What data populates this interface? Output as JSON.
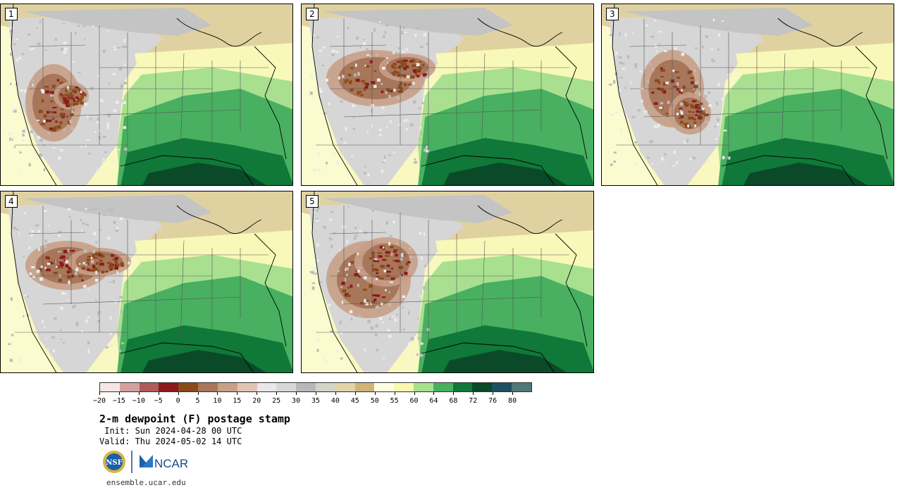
{
  "panels": [
    {
      "number": "1",
      "scenario": "west-dry-narrow"
    },
    {
      "number": "2",
      "scenario": "west-dry-broad"
    },
    {
      "number": "3",
      "scenario": "southwest-dry"
    },
    {
      "number": "4",
      "scenario": "central-dry"
    },
    {
      "number": "5",
      "scenario": "plains-dry"
    }
  ],
  "colorbar": {
    "ticks": [
      "−20",
      "−15",
      "−10",
      "−5",
      "0",
      "5",
      "10",
      "15",
      "20",
      "25",
      "30",
      "35",
      "40",
      "45",
      "50",
      "55",
      "60",
      "64",
      "68",
      "72",
      "76",
      "80"
    ],
    "colors": [
      "#f4e6e6",
      "#d4a0a0",
      "#b05a5a",
      "#8c1a1a",
      "#8a4a1a",
      "#a8765a",
      "#c8a088",
      "#e0c4b4",
      "#e8e8e8",
      "#d8d8d8",
      "#b8b8b8",
      "#d4d4c8",
      "#e0d4a8",
      "#cfb47a",
      "#ffffe0",
      "#f8f8b0",
      "#a8e090",
      "#48b060",
      "#107838",
      "#0a4a28",
      "#1e5060",
      "#507878"
    ]
  },
  "title": "2-m dewpoint (F) postage stamp",
  "init": " Init: Sun 2024-04-28 00 UTC",
  "valid": "Valid: Thu 2024-05-02 14 UTC",
  "logos": {
    "nsf": "NSF",
    "ncar": "NCAR"
  },
  "footer": "ensemble.ucar.edu"
}
